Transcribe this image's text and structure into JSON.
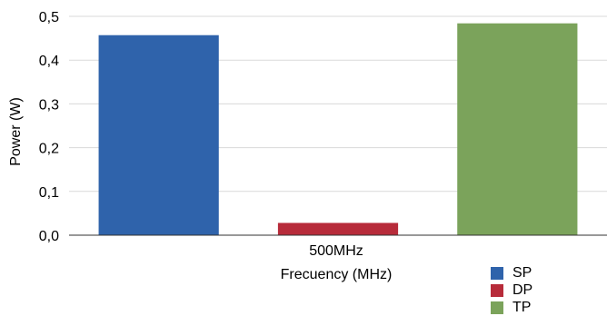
{
  "chart_data": {
    "type": "bar",
    "categories": [
      "500MHz"
    ],
    "series": [
      {
        "name": "SP",
        "values": [
          0.457
        ],
        "color": "#2f63ab"
      },
      {
        "name": "DP",
        "values": [
          0.028
        ],
        "color": "#b72b3a"
      },
      {
        "name": "TP",
        "values": [
          0.484
        ],
        "color": "#7ba35b"
      }
    ],
    "xlabel": "Frecuency (MHz)",
    "ylabel": "Power (W)",
    "ylim": [
      0,
      0.5
    ],
    "yticks": [
      "0,0",
      "0,1",
      "0,2",
      "0,3",
      "0,4",
      "0,5"
    ],
    "grid": true,
    "legend_position": "bottom-right"
  }
}
